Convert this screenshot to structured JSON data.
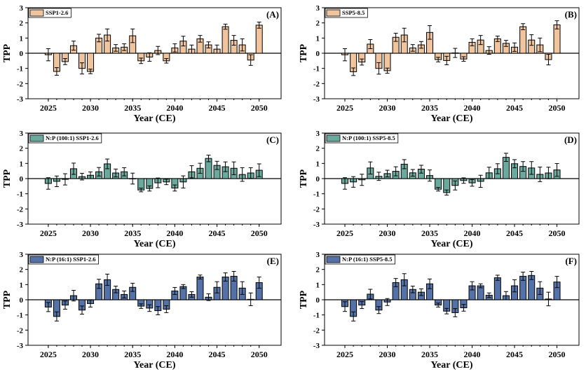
{
  "chart_data": [
    {
      "type": "bar",
      "panel_label": "(A)",
      "legend": "SSP1-2.6",
      "color": "#f0c49c",
      "xlabel": "Year (CE)",
      "ylabel": "TPP",
      "ylim": [
        -3,
        3
      ],
      "xticks": [
        2025,
        2030,
        2035,
        2040,
        2045,
        2050
      ],
      "yticks": [
        -3,
        -2,
        -1,
        0,
        1,
        2,
        3
      ],
      "categories": [
        2025,
        2026,
        2027,
        2028,
        2029,
        2030,
        2031,
        2032,
        2033,
        2034,
        2035,
        2036,
        2037,
        2038,
        2039,
        2040,
        2041,
        2042,
        2043,
        2044,
        2045,
        2046,
        2047,
        2048,
        2049,
        2050
      ],
      "values": [
        -0.1,
        -1.2,
        -0.55,
        0.5,
        -1.0,
        -1.2,
        1.0,
        1.2,
        0.35,
        0.4,
        1.15,
        -0.5,
        -0.25,
        0.18,
        -0.5,
        0.35,
        0.8,
        0.27,
        0.95,
        0.55,
        0.27,
        1.75,
        0.85,
        0.55,
        -0.45,
        1.85
      ],
      "errors": [
        0.4,
        0.25,
        0.2,
        0.3,
        0.37,
        0.15,
        0.25,
        0.4,
        0.22,
        0.22,
        0.45,
        0.18,
        0.28,
        0.27,
        0.15,
        0.27,
        0.32,
        0.27,
        0.22,
        0.2,
        0.27,
        0.17,
        0.32,
        0.4,
        0.35,
        0.2
      ]
    },
    {
      "type": "bar",
      "panel_label": "(B)",
      "legend": "SSP5-8.5",
      "color": "#f0c49c",
      "xlabel": "Year (CE)",
      "ylabel": "TPP",
      "ylim": [
        -3,
        3
      ],
      "xticks": [
        2025,
        2030,
        2035,
        2040,
        2045,
        2050
      ],
      "yticks": [
        -3,
        -2,
        -1,
        0,
        1,
        2,
        3
      ],
      "categories": [
        2025,
        2026,
        2027,
        2028,
        2029,
        2030,
        2031,
        2032,
        2033,
        2034,
        2035,
        2036,
        2037,
        2038,
        2039,
        2040,
        2041,
        2042,
        2043,
        2044,
        2045,
        2046,
        2047,
        2048,
        2049,
        2050
      ],
      "values": [
        -0.1,
        -1.22,
        -0.58,
        0.6,
        -1.0,
        -1.15,
        1.05,
        1.2,
        0.35,
        0.55,
        1.37,
        -0.42,
        -0.48,
        0.02,
        -0.38,
        0.72,
        0.87,
        0.18,
        0.95,
        0.65,
        0.4,
        1.75,
        0.87,
        0.55,
        -0.42,
        1.87
      ],
      "errors": [
        0.4,
        0.25,
        0.2,
        0.3,
        0.38,
        0.17,
        0.27,
        0.45,
        0.22,
        0.22,
        0.45,
        0.15,
        0.28,
        0.3,
        0.15,
        0.23,
        0.3,
        0.25,
        0.18,
        0.2,
        0.28,
        0.2,
        0.35,
        0.45,
        0.35,
        0.27
      ]
    },
    {
      "type": "bar",
      "panel_label": "(C)",
      "legend": "N:P (100:1) SSP1-2.6",
      "color": "#6aaa9e",
      "xlabel": "Year (CE)",
      "ylabel": "TPP",
      "ylim": [
        -3,
        3
      ],
      "xticks": [
        2025,
        2030,
        2035,
        2040,
        2045,
        2050
      ],
      "yticks": [
        -3,
        -2,
        -1,
        0,
        1,
        2,
        3
      ],
      "categories": [
        2025,
        2026,
        2027,
        2028,
        2029,
        2030,
        2031,
        2032,
        2033,
        2034,
        2035,
        2036,
        2037,
        2038,
        2039,
        2040,
        2041,
        2042,
        2043,
        2044,
        2045,
        2046,
        2047,
        2048,
        2049,
        2050
      ],
      "values": [
        -0.32,
        -0.18,
        -0.05,
        0.65,
        0.13,
        0.22,
        0.45,
        0.97,
        0.37,
        0.45,
        0.0,
        -0.75,
        -0.65,
        -0.28,
        -0.22,
        -0.62,
        -0.22,
        0.45,
        0.68,
        1.33,
        0.87,
        0.78,
        0.68,
        0.27,
        0.37,
        0.55
      ],
      "errors": [
        0.38,
        0.35,
        0.37,
        0.37,
        0.22,
        0.22,
        0.28,
        0.32,
        0.26,
        0.27,
        0.36,
        0.12,
        0.17,
        0.32,
        0.18,
        0.2,
        0.4,
        0.4,
        0.33,
        0.22,
        0.27,
        0.32,
        0.42,
        0.45,
        0.35,
        0.42
      ]
    },
    {
      "type": "bar",
      "panel_label": "(D)",
      "legend": "N:P (100:1) SSP5-8.5",
      "color": "#6aaa9e",
      "xlabel": "Year (CE)",
      "ylabel": "TPP",
      "ylim": [
        -3,
        3
      ],
      "xticks": [
        2025,
        2030,
        2035,
        2040,
        2045,
        2050
      ],
      "yticks": [
        -3,
        -2,
        -1,
        0,
        1,
        2,
        3
      ],
      "categories": [
        2025,
        2026,
        2027,
        2028,
        2029,
        2030,
        2031,
        2032,
        2033,
        2034,
        2035,
        2036,
        2037,
        2038,
        2039,
        2040,
        2041,
        2042,
        2043,
        2044,
        2045,
        2046,
        2047,
        2048,
        2049,
        2050
      ],
      "values": [
        -0.32,
        -0.22,
        -0.08,
        0.7,
        0.15,
        0.33,
        0.48,
        0.95,
        0.38,
        0.62,
        0.2,
        -0.7,
        -0.92,
        -0.45,
        -0.13,
        -0.28,
        -0.18,
        0.38,
        0.65,
        1.4,
        0.98,
        0.8,
        0.7,
        0.28,
        0.37,
        0.57
      ],
      "errors": [
        0.38,
        0.35,
        0.37,
        0.4,
        0.27,
        0.22,
        0.3,
        0.3,
        0.22,
        0.26,
        0.37,
        0.12,
        0.17,
        0.3,
        0.18,
        0.22,
        0.4,
        0.37,
        0.33,
        0.27,
        0.27,
        0.32,
        0.42,
        0.48,
        0.38,
        0.42
      ]
    },
    {
      "type": "bar",
      "panel_label": "(E)",
      "legend": "N:P (16:1) SSP1-2.6",
      "color": "#5472a8",
      "xlabel": "Year (CE)",
      "ylabel": "TPP",
      "ylim": [
        -3,
        3
      ],
      "xticks": [
        2025,
        2030,
        2035,
        2040,
        2045,
        2050
      ],
      "yticks": [
        -3,
        -2,
        -1,
        0,
        1,
        2,
        3
      ],
      "categories": [
        2025,
        2026,
        2027,
        2028,
        2029,
        2030,
        2031,
        2032,
        2033,
        2034,
        2035,
        2036,
        2037,
        2038,
        2039,
        2040,
        2041,
        2042,
        2043,
        2044,
        2045,
        2046,
        2047,
        2048,
        2049,
        2050
      ],
      "values": [
        -0.48,
        -1.1,
        -0.35,
        0.27,
        -0.68,
        -0.25,
        1.05,
        1.32,
        0.68,
        0.35,
        0.82,
        -0.42,
        -0.55,
        -0.72,
        -0.62,
        0.58,
        0.87,
        0.35,
        1.5,
        0.17,
        0.82,
        1.5,
        1.55,
        0.77,
        0.03,
        1.13
      ],
      "errors": [
        0.3,
        0.3,
        0.27,
        0.35,
        0.27,
        0.23,
        0.3,
        0.37,
        0.22,
        0.23,
        0.27,
        0.15,
        0.22,
        0.27,
        0.23,
        0.23,
        0.13,
        0.18,
        0.13,
        0.22,
        0.37,
        0.27,
        0.32,
        0.42,
        0.42,
        0.37
      ]
    },
    {
      "type": "bar",
      "panel_label": "(F)",
      "legend": "N:P (16:1) SSP5-8.5",
      "color": "#5472a8",
      "xlabel": "Year (CE)",
      "ylabel": "TPP",
      "ylim": [
        -3,
        3
      ],
      "xticks": [
        2025,
        2030,
        2035,
        2040,
        2045,
        2050
      ],
      "yticks": [
        -3,
        -2,
        -1,
        0,
        1,
        2,
        3
      ],
      "categories": [
        2025,
        2026,
        2027,
        2028,
        2029,
        2030,
        2031,
        2032,
        2033,
        2034,
        2035,
        2036,
        2037,
        2038,
        2039,
        2040,
        2041,
        2042,
        2043,
        2044,
        2045,
        2046,
        2047,
        2048,
        2049,
        2050
      ],
      "values": [
        -0.45,
        -1.1,
        -0.35,
        0.37,
        -0.68,
        -0.15,
        1.13,
        1.32,
        0.68,
        0.5,
        1.05,
        -0.35,
        -0.75,
        -0.85,
        -0.53,
        0.92,
        0.92,
        0.3,
        1.45,
        0.27,
        0.92,
        1.55,
        1.6,
        0.77,
        0.05,
        1.17
      ],
      "errors": [
        0.32,
        0.3,
        0.23,
        0.32,
        0.23,
        0.23,
        0.27,
        0.4,
        0.22,
        0.22,
        0.32,
        0.13,
        0.18,
        0.27,
        0.22,
        0.27,
        0.13,
        0.15,
        0.17,
        0.27,
        0.4,
        0.27,
        0.27,
        0.42,
        0.45,
        0.37
      ]
    }
  ]
}
